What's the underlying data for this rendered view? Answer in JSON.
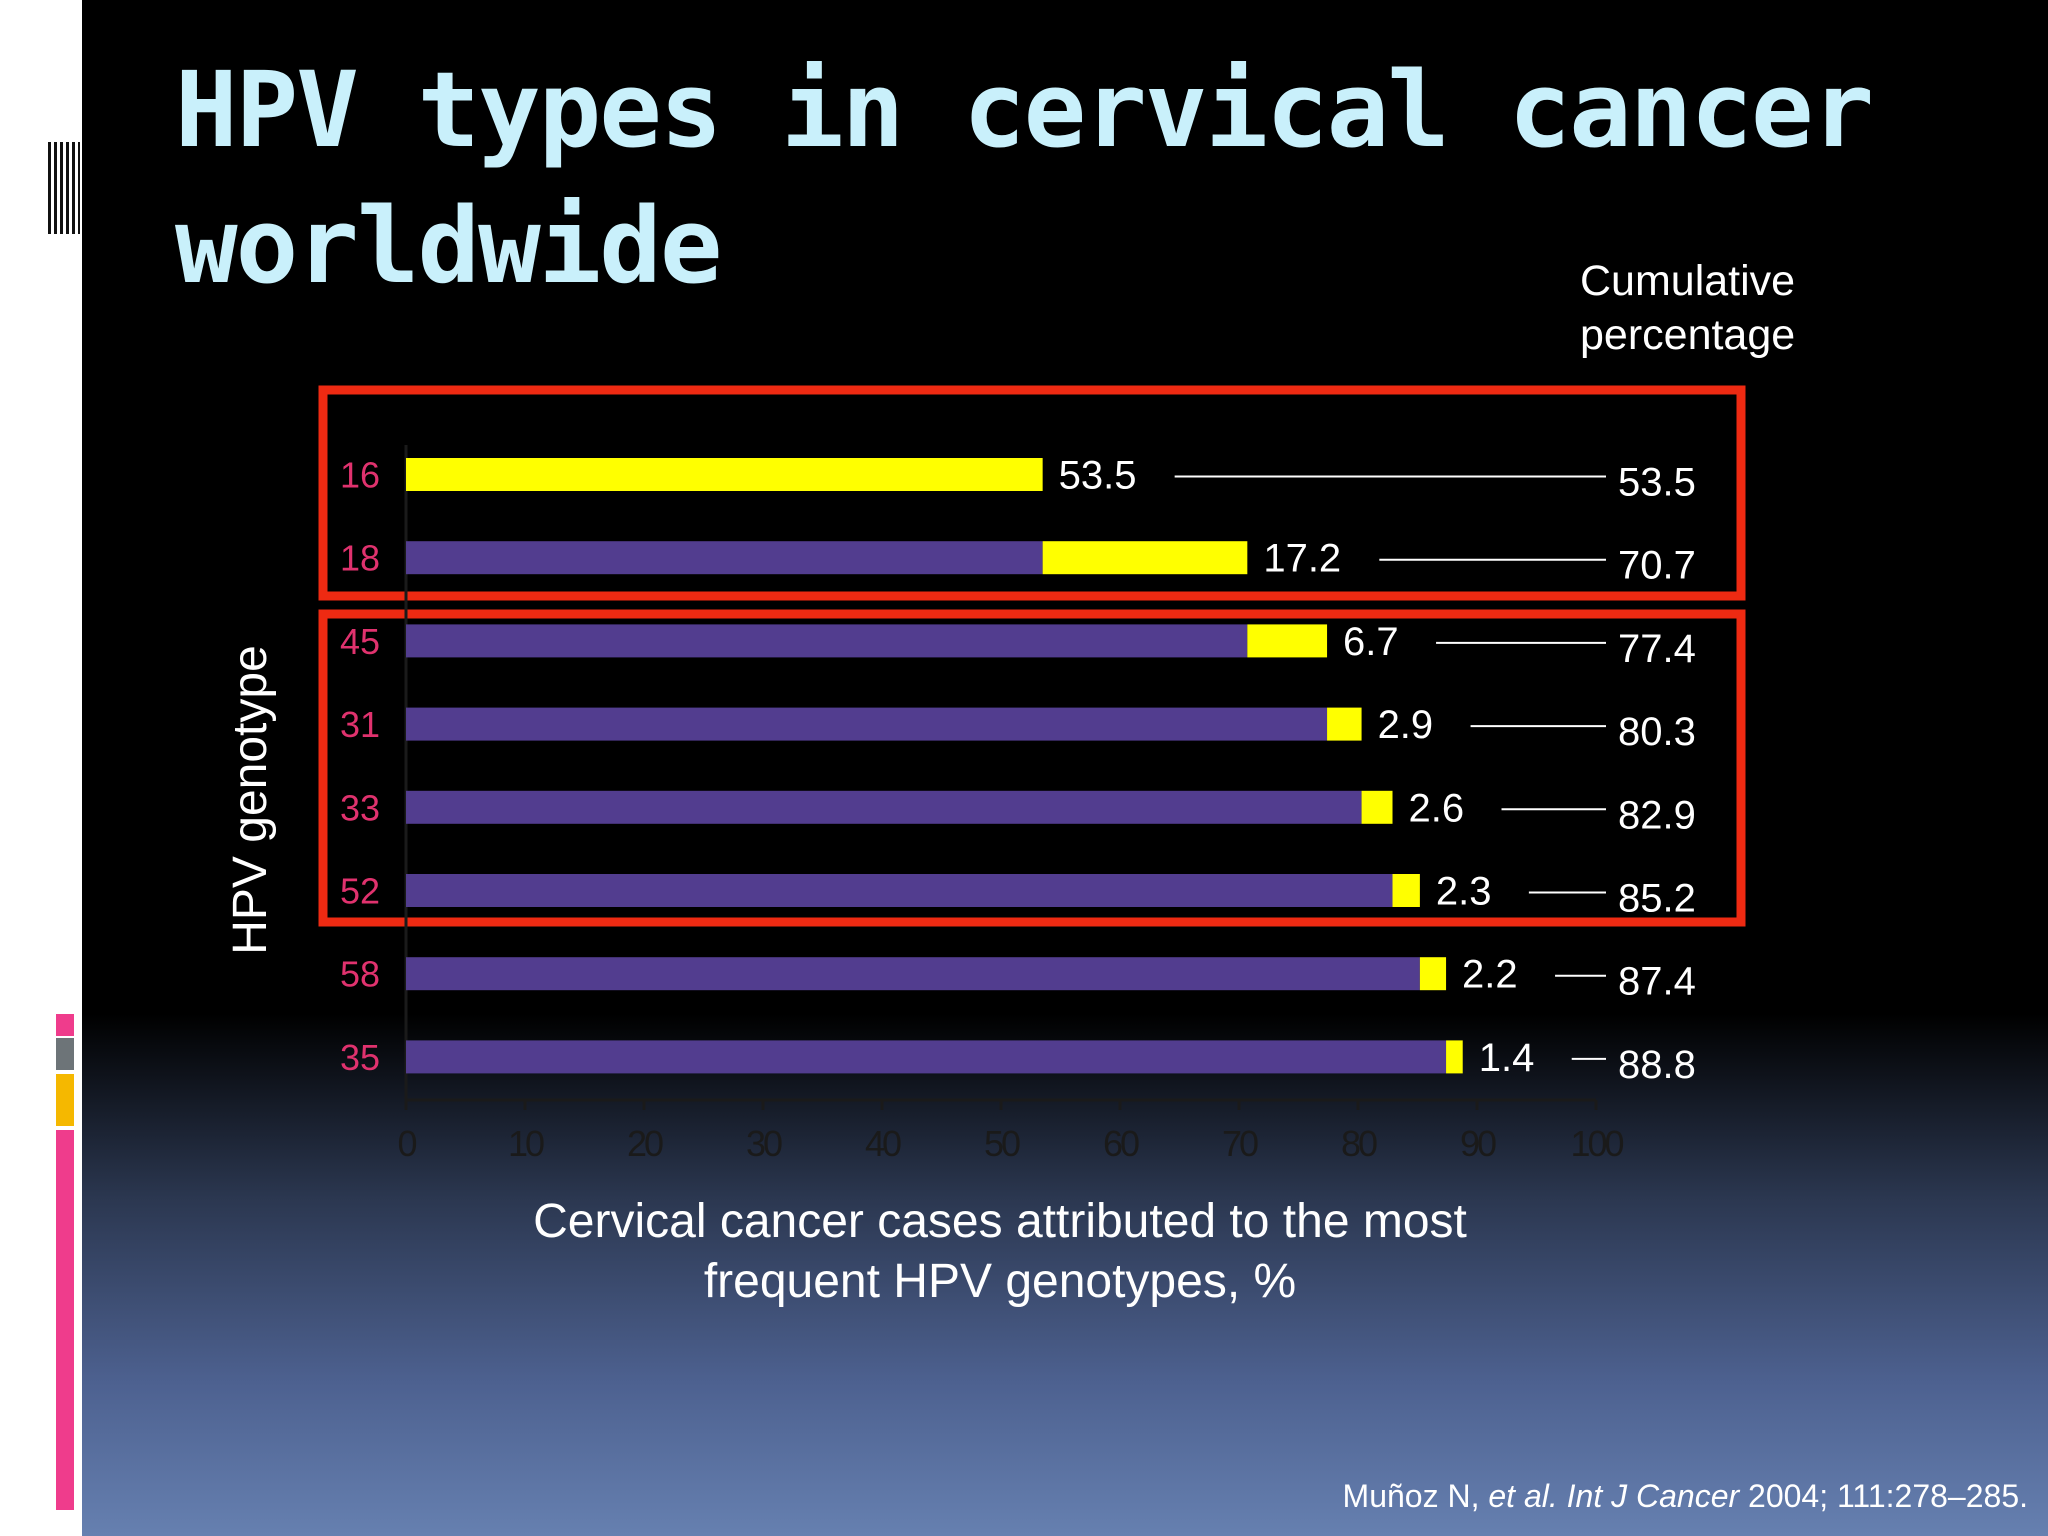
{
  "slide": {
    "title": "HPV types in cervical cancer worldwide",
    "cumulative_heading": "Cumulative percentage",
    "xlabel": "Cervical cancer cases attributed to the most frequent HPV genotypes, %",
    "ylabel": "HPV genotype",
    "citation": {
      "author": "Muñoz N,",
      "etal": "et al.",
      "journal": "Int J Cancer",
      "rest": "2004; 111:278–285."
    }
  },
  "colors": {
    "background": "#000000",
    "title": "#c9f0fb",
    "bar_base": "#523d8f",
    "bar_increment": "#ffff00",
    "category_label": "#e0326e",
    "highlight_box": "#ee2a12",
    "stripe_pink": "#ef3c8c",
    "stripe_gray": "#6d7478",
    "stripe_gold": "#f5b800"
  },
  "chart_data": {
    "type": "bar",
    "orientation": "horizontal",
    "stacked": true,
    "categories": [
      "16",
      "18",
      "45",
      "31",
      "33",
      "52",
      "58",
      "35"
    ],
    "series": [
      {
        "values": [
          0,
          53.5,
          70.7,
          77.4,
          80.3,
          82.9,
          85.2,
          87.4
        ]
      },
      {
        "values": [
          53.5,
          17.2,
          6.7,
          2.9,
          2.6,
          2.3,
          2.2,
          1.4
        ]
      }
    ],
    "value_labels": [
      "53.5",
      "17.2",
      "6.7",
      "2.9",
      "2.6",
      "2.3",
      "2.2",
      "1.4"
    ],
    "cumulative_labels": [
      "53.5",
      "70.7",
      "77.4",
      "80.3",
      "82.9",
      "85.2",
      "87.4",
      "88.8"
    ],
    "xlim": [
      0,
      100
    ],
    "xticks": [
      "0",
      "10",
      "20",
      "30",
      "40",
      "50",
      "60",
      "70",
      "80",
      "90",
      "100"
    ],
    "grid": false,
    "highlight_groups": [
      [
        "16",
        "18"
      ],
      [
        "45",
        "31",
        "33",
        "52"
      ]
    ]
  }
}
